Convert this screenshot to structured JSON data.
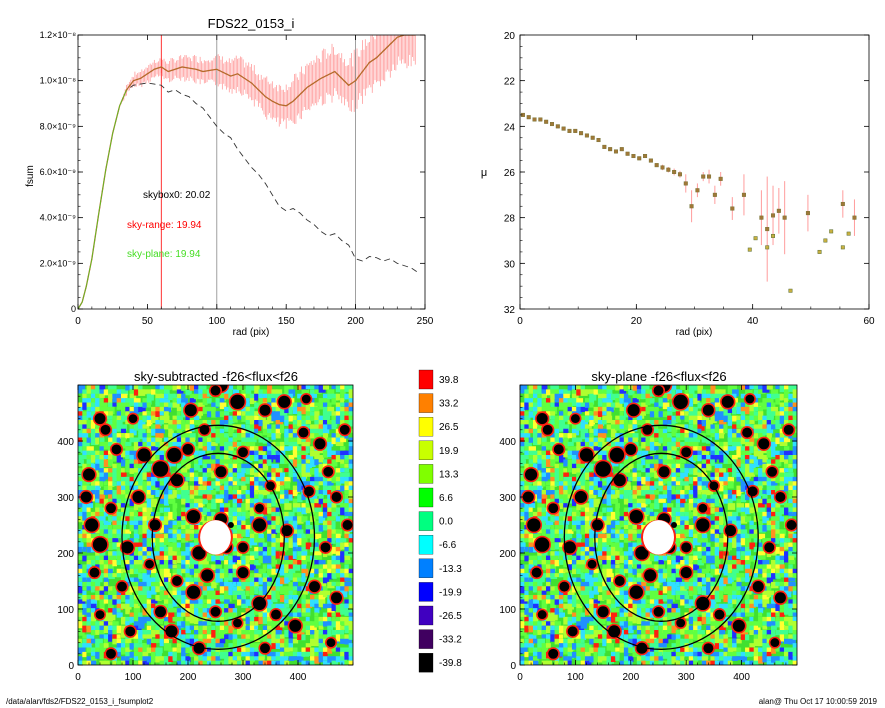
{
  "footer": {
    "path": "/data/alan/fds2/FDS22_0153_i_fsumplot2",
    "user_time": "alan@  Thu Oct 17 10:00:59 2019"
  },
  "colors": {
    "sum": "#ff0000",
    "sum_err": "#ff9c9c",
    "sum_line": "#b56a2a",
    "sky0_line": "#888888",
    "sky_plane": "#44dd22",
    "mu_point": "#a07838"
  },
  "chart_data": [
    {
      "type": "line",
      "title": "FDS22_0153_i",
      "xlabel": "rad (pix)",
      "ylabel": "fsum",
      "xlim": [
        0,
        250
      ],
      "ylim": [
        0,
        1.2e-08
      ],
      "xticks": [
        "0",
        "50",
        "100",
        "150",
        "200",
        "250"
      ],
      "yticks": [
        "0",
        "2.0×10⁻⁹",
        "4.0×10⁻⁹",
        "6.0×10⁻⁹",
        "8.0×10⁻⁹",
        "1.0×10⁻⁸",
        "1.2×10⁻⁸"
      ],
      "vlines": [
        {
          "x": 60,
          "color": "#ff0000"
        },
        {
          "x": 100,
          "color": "#888888"
        },
        {
          "x": 200,
          "color": "#888888"
        }
      ],
      "annotations": [
        {
          "text": "skybox0: 20.02",
          "color": "#000000"
        },
        {
          "text": "sky-range: 19.94",
          "color": "#ff0000"
        },
        {
          "text": "sky-plane: 19.94",
          "color": "#44dd22"
        }
      ],
      "series": [
        {
          "style": "solid-with-errorbars",
          "x": [
            0,
            3,
            6,
            10,
            15,
            20,
            25,
            30,
            35,
            40,
            45,
            50,
            55,
            60,
            65,
            70,
            75,
            80,
            85,
            90,
            95,
            100,
            105,
            110,
            115,
            120,
            125,
            130,
            135,
            140,
            145,
            150,
            155,
            160,
            165,
            170,
            175,
            180,
            185,
            190,
            195,
            200,
            205,
            210,
            215,
            220,
            225,
            230,
            235,
            240,
            243
          ],
          "y": [
            0,
            3e-10,
            1e-09,
            2.2e-09,
            4.2e-09,
            6.1e-09,
            7.7e-09,
            8.9e-09,
            9.6e-09,
            1e-08,
            1.01e-08,
            1.03e-08,
            1.05e-08,
            1.06e-08,
            1.04e-08,
            1.05e-08,
            1.06e-08,
            1.055e-08,
            1.05e-08,
            1.04e-08,
            1.045e-08,
            1.05e-08,
            1.035e-08,
            1.02e-08,
            1.03e-08,
            1.01e-08,
            9.9e-09,
            9.6e-09,
            9.3e-09,
            9.1e-09,
            8.95e-09,
            8.9e-09,
            9.1e-09,
            9.4e-09,
            9.7e-09,
            9.9e-09,
            1.01e-08,
            1.025e-08,
            1.04e-08,
            1.01e-08,
            9.8e-09,
            1e-08,
            1.04e-08,
            1.08e-08,
            1.1e-08,
            1.13e-08,
            1.16e-08,
            1.19e-08,
            1.2e-08,
            1.2e-08,
            1.2e-08
          ],
          "err": [
            0,
            0,
            0,
            0,
            0,
            0,
            0,
            0,
            2e-10,
            2.5e-10,
            3e-10,
            3e-10,
            3.5e-10,
            3.5e-10,
            4e-10,
            4e-10,
            4.5e-10,
            4.5e-10,
            5e-10,
            5e-10,
            5.5e-10,
            5.5e-10,
            6e-10,
            6e-10,
            6.5e-10,
            6.5e-10,
            7e-10,
            7e-10,
            7.5e-10,
            8e-10,
            8e-10,
            8.5e-10,
            8.5e-10,
            9e-10,
            9e-10,
            9.5e-10,
            9.5e-10,
            1e-09,
            1e-09,
            1e-09,
            1.05e-09,
            1.05e-09,
            1.1e-09,
            1.1e-09,
            1.15e-09,
            1.2e-09,
            1.2e-09,
            1.2e-09,
            1.2e-09,
            1.2e-09,
            1.2e-09
          ]
        },
        {
          "style": "dashed",
          "x": [
            0,
            3,
            6,
            10,
            15,
            20,
            25,
            30,
            35,
            40,
            45,
            50,
            55,
            60,
            65,
            70,
            75,
            80,
            85,
            90,
            95,
            100,
            105,
            110,
            115,
            120,
            125,
            130,
            135,
            140,
            145,
            150,
            155,
            160,
            165,
            170,
            175,
            180,
            185,
            190,
            195,
            200,
            205,
            210,
            215,
            220,
            225,
            230,
            235,
            240,
            245
          ],
          "y": [
            0,
            3e-10,
            1e-09,
            2.2e-09,
            4.2e-09,
            6.1e-09,
            7.7e-09,
            8.9e-09,
            9.6e-09,
            9.8e-09,
            9.85e-09,
            9.9e-09,
            9.85e-09,
            9.8e-09,
            9.5e-09,
            9.6e-09,
            9.4e-09,
            9.3e-09,
            9e-09,
            8.8e-09,
            8.4e-09,
            8e-09,
            7.7e-09,
            7.5e-09,
            7e-09,
            6.6e-09,
            6.2e-09,
            5.9e-09,
            5.5e-09,
            5e-09,
            4.5e-09,
            4.3e-09,
            4.4e-09,
            4.2e-09,
            3.9e-09,
            3.7e-09,
            3.4e-09,
            3.2e-09,
            3.3e-09,
            3e-09,
            2.8e-09,
            2.2e-09,
            2.1e-09,
            2.3e-09,
            2.25e-09,
            2.1e-09,
            2.2e-09,
            2e-09,
            1.9e-09,
            1.8e-09,
            1.6e-09
          ]
        }
      ]
    },
    {
      "type": "scatter",
      "xlabel": "rad (pix)",
      "ylabel": "μ",
      "xlim": [
        0,
        60
      ],
      "ylim": [
        32,
        20
      ],
      "xticks": [
        "0",
        "20",
        "40",
        "60"
      ],
      "yticks": [
        "20",
        "22",
        "24",
        "26",
        "28",
        "30",
        "32"
      ],
      "series": [
        {
          "style": "points-with-errorbars",
          "x": [
            0.5,
            1.5,
            2.5,
            3.5,
            4.5,
            5.5,
            6.5,
            7.5,
            8.5,
            9.5,
            10.5,
            11.5,
            12.5,
            13.5,
            14.5,
            15.5,
            16.5,
            17.5,
            18.5,
            19.5,
            20.5,
            21.5,
            22.5,
            23.5,
            24.5,
            25.5,
            26.5,
            27.5,
            28.5,
            29.5,
            30.5,
            31.5,
            32.5,
            33.5,
            34.5,
            36.5,
            38.5,
            41.5,
            42.5,
            43.5,
            44.5,
            45.5,
            49.5,
            55.5,
            57.5
          ],
          "y": [
            23.5,
            23.6,
            23.7,
            23.7,
            23.8,
            23.9,
            24.0,
            24.1,
            24.2,
            24.2,
            24.3,
            24.4,
            24.5,
            24.6,
            24.9,
            25.0,
            25.1,
            25.0,
            25.2,
            25.3,
            25.4,
            25.3,
            25.5,
            25.7,
            25.8,
            25.9,
            26.0,
            26.1,
            26.5,
            27.5,
            26.8,
            26.2,
            26.2,
            27.0,
            26.3,
            27.6,
            27.0,
            28.0,
            28.5,
            27.9,
            27.7,
            28.0,
            27.8,
            27.4,
            28.0
          ],
          "err": [
            0.05,
            0.05,
            0.05,
            0.05,
            0.05,
            0.05,
            0.05,
            0.05,
            0.05,
            0.05,
            0.05,
            0.05,
            0.05,
            0.05,
            0.06,
            0.06,
            0.07,
            0.07,
            0.08,
            0.08,
            0.09,
            0.09,
            0.1,
            0.1,
            0.12,
            0.12,
            0.15,
            0.15,
            0.4,
            0.7,
            0.3,
            0.2,
            0.3,
            0.4,
            0.3,
            0.5,
            0.9,
            1.2,
            2.3,
            1.3,
            1.0,
            1.6,
            0.8,
            0.6,
            0.8
          ]
        },
        {
          "style": "squares",
          "x": [
            39.5,
            40.5,
            42.5,
            43.5,
            46.5,
            51.5,
            52.5,
            53.5,
            55.5,
            56.5
          ],
          "y": [
            29.4,
            28.9,
            29.3,
            28.8,
            31.2,
            29.5,
            29.0,
            28.6,
            29.3,
            28.7
          ]
        }
      ]
    },
    {
      "type": "heatmap",
      "title": "sky-subtracted -f26<flux<f26",
      "xlim": [
        0,
        500
      ],
      "ylim": [
        0,
        500
      ],
      "xticks": [
        "0",
        "100",
        "200",
        "300",
        "400"
      ],
      "yticks": [
        "0",
        "100",
        "200",
        "300",
        "400"
      ]
    },
    {
      "type": "heatmap",
      "title": "sky-plane -f26<flux<f26",
      "xlim": [
        0,
        500
      ],
      "ylim": [
        0,
        500
      ],
      "xticks": [
        "0",
        "100",
        "200",
        "300",
        "400"
      ],
      "yticks": [
        "0",
        "100",
        "200",
        "300",
        "400"
      ]
    }
  ],
  "colorbar": {
    "levels": [
      {
        "label": "39.8",
        "color": "#ff0000"
      },
      {
        "label": "33.2",
        "color": "#ff8000"
      },
      {
        "label": "26.5",
        "color": "#ffff00"
      },
      {
        "label": "19.9",
        "color": "#c8ff00"
      },
      {
        "label": "13.3",
        "color": "#80ff00"
      },
      {
        "label": "6.6",
        "color": "#00ff00"
      },
      {
        "label": "0.0",
        "color": "#00ff80"
      },
      {
        "label": "-6.6",
        "color": "#00ffff"
      },
      {
        "label": "-13.3",
        "color": "#0080ff"
      },
      {
        "label": "-19.9",
        "color": "#0000ff"
      },
      {
        "label": "-26.5",
        "color": "#4000c0"
      },
      {
        "label": "-33.2",
        "color": "#400060"
      },
      {
        "label": "-39.8",
        "color": "#000000"
      }
    ]
  },
  "sky_image": {
    "palette": [
      "#000000",
      "#2030ff",
      "#2090ff",
      "#30e0ff",
      "#40ff90",
      "#60ff40",
      "#40e030",
      "#b0ff30",
      "#ffff30",
      "#ff9020",
      "#ff2010"
    ],
    "weights": [
      0,
      3,
      7,
      10,
      14,
      16,
      20,
      12,
      4,
      3,
      2
    ],
    "ellipses": [
      {
        "cx": 255,
        "cy": 228,
        "rx": 120,
        "ry": 150
      },
      {
        "cx": 255,
        "cy": 228,
        "rx": 175,
        "ry": 200
      }
    ],
    "center_blob": {
      "cx": 250,
      "cy": 228,
      "r": 28
    },
    "masks": [
      [
        40,
        440,
        10
      ],
      [
        50,
        420,
        9
      ],
      [
        20,
        340,
        11
      ],
      [
        15,
        300,
        10
      ],
      [
        25,
        250,
        12
      ],
      [
        40,
        215,
        13
      ],
      [
        90,
        210,
        11
      ],
      [
        80,
        140,
        9
      ],
      [
        95,
        60,
        9
      ],
      [
        40,
        90,
        8
      ],
      [
        150,
        95,
        10
      ],
      [
        170,
        60,
        11
      ],
      [
        210,
        130,
        12
      ],
      [
        235,
        160,
        11
      ],
      [
        300,
        165,
        10
      ],
      [
        330,
        110,
        12
      ],
      [
        360,
        90,
        9
      ],
      [
        395,
        70,
        11
      ],
      [
        430,
        140,
        10
      ],
      [
        450,
        210,
        9
      ],
      [
        380,
        240,
        10
      ],
      [
        330,
        250,
        12
      ],
      [
        260,
        260,
        11
      ],
      [
        210,
        265,
        12
      ],
      [
        180,
        330,
        11
      ],
      [
        150,
        350,
        14
      ],
      [
        120,
        375,
        12
      ],
      [
        175,
        375,
        13
      ],
      [
        200,
        385,
        10
      ],
      [
        230,
        420,
        9
      ],
      [
        205,
        455,
        11
      ],
      [
        290,
        470,
        13
      ],
      [
        340,
        455,
        10
      ],
      [
        375,
        470,
        11
      ],
      [
        410,
        415,
        9
      ],
      [
        440,
        395,
        10
      ],
      [
        455,
        345,
        9
      ],
      [
        470,
        300,
        9
      ],
      [
        420,
        310,
        9
      ],
      [
        350,
        320,
        8
      ],
      [
        300,
        380,
        9
      ],
      [
        260,
        345,
        10
      ],
      [
        330,
        280,
        8
      ],
      [
        220,
        200,
        12
      ],
      [
        270,
        210,
        10
      ],
      [
        300,
        210,
        9
      ],
      [
        140,
        250,
        10
      ],
      [
        110,
        300,
        11
      ],
      [
        60,
        280,
        9
      ],
      [
        30,
        165,
        9
      ],
      [
        130,
        180,
        8
      ],
      [
        180,
        150,
        9
      ],
      [
        250,
        95,
        9
      ],
      [
        290,
        75,
        8
      ],
      [
        60,
        20,
        9
      ],
      [
        220,
        30,
        10
      ],
      [
        340,
        30,
        9
      ],
      [
        460,
        40,
        8
      ],
      [
        470,
        120,
        10
      ],
      [
        490,
        250,
        9
      ],
      [
        485,
        420,
        9
      ],
      [
        415,
        475,
        8
      ],
      [
        70,
        385,
        9
      ],
      [
        100,
        440,
        8
      ],
      [
        260,
        500,
        12
      ],
      [
        250,
        490,
        9
      ]
    ]
  }
}
